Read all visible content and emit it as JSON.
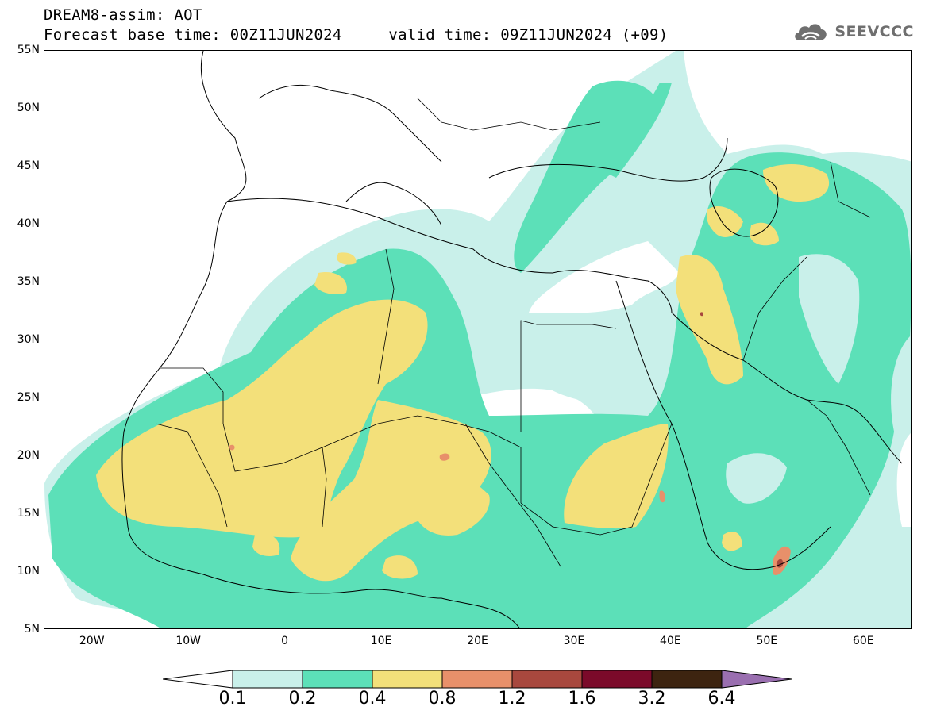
{
  "title": {
    "line1": "DREAM8-assim: AOT",
    "line2": "Forecast base time: 00Z11JUN2024     valid time: 09Z11JUN2024 (+09)"
  },
  "logo": {
    "text": "SEEVCCC",
    "icon": "cloud-icon"
  },
  "map": {
    "latitude_labels": [
      "55N",
      "50N",
      "45N",
      "40N",
      "35N",
      "30N",
      "25N",
      "20N",
      "15N",
      "10N",
      "5N"
    ],
    "longitude_labels": [
      "20W",
      "10W",
      "0",
      "10E",
      "20E",
      "30E",
      "40E",
      "50E",
      "60E"
    ],
    "lat_range": [
      5,
      55
    ],
    "lon_range": [
      -25,
      65
    ],
    "shading": [
      {
        "class": "0.1-0.2",
        "regions": [
          "Mediterranean belt",
          "Eastern Europe plume",
          "Arabian Sea fringe",
          "Central Asia"
        ]
      },
      {
        "class": "0.2-0.4",
        "regions": [
          "Sahara belt",
          "Sahel",
          "Red Sea",
          "Caspian region",
          "Black Sea plume"
        ]
      },
      {
        "class": "0.4-0.8",
        "regions": [
          "Mauritania-Mali",
          "Algeria-Libya",
          "Niger-Chad",
          "Sudan",
          "Iraq",
          "Caspian north"
        ]
      },
      {
        "class": "0.8-1.2",
        "regions": [
          "Chad spot",
          "Eritrea coast",
          "Somalia spot",
          "Mauritania spot"
        ]
      },
      {
        "class": "1.2-1.6",
        "regions": [
          "Somalia core"
        ]
      }
    ]
  },
  "colorbar": {
    "levels": [
      "0.1",
      "0.2",
      "0.4",
      "0.8",
      "1.2",
      "1.6",
      "3.2",
      "6.4"
    ],
    "colors": [
      "#c9f0ea",
      "#5ce0b8",
      "#f3e07a",
      "#e8906a",
      "#a8483e",
      "#7b0a2a",
      "#3d2410",
      "#9a6fb0"
    ],
    "under_color": "#ffffff"
  }
}
